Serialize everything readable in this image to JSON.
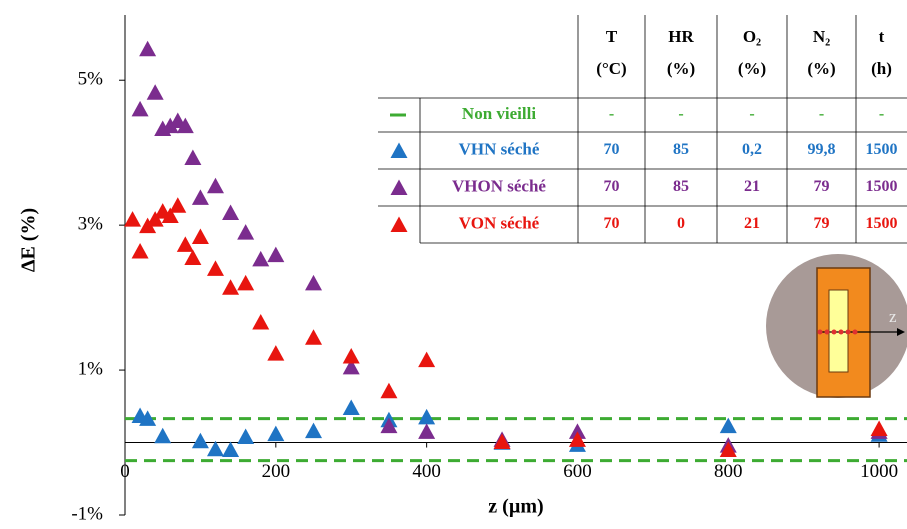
{
  "chart_data": {
    "type": "scatter",
    "xlabel": "z (µm)",
    "ylabel": "ΔE (%)",
    "xlim": [
      0,
      1037
    ],
    "ylim": [
      -1,
      5.9
    ],
    "xticks": [
      0,
      200,
      400,
      600,
      800,
      1000
    ],
    "yticks": [
      {
        "value": 5,
        "label": "5%"
      },
      {
        "value": 3,
        "label": "3%"
      },
      {
        "value": 1,
        "label": "1%"
      },
      {
        "value": -1,
        "label": "-1%"
      }
    ],
    "series": [
      {
        "name": "Non vieilli",
        "color": "#3dab32",
        "values": [
          0.33,
          -0.25
        ]
      },
      {
        "name": "VHN séché",
        "color": "#1f74c4",
        "x": [
          20,
          30,
          50,
          100,
          120,
          140,
          160,
          200,
          250,
          300,
          350,
          400,
          500,
          600,
          800,
          1000
        ],
        "values": [
          0.36,
          0.32,
          0.08,
          0.01,
          -0.1,
          -0.11,
          0.07,
          0.11,
          0.15,
          0.47,
          0.3,
          0.34,
          -0.01,
          -0.04,
          0.22,
          0.1
        ]
      },
      {
        "name": "VHON séché",
        "color": "#7b2c8e",
        "x": [
          20,
          30,
          40,
          50,
          60,
          70,
          80,
          90,
          100,
          120,
          140,
          160,
          180,
          200,
          250,
          300,
          350,
          400,
          500,
          600,
          800,
          1000
        ],
        "values": [
          4.59,
          5.42,
          4.82,
          4.32,
          4.36,
          4.43,
          4.36,
          3.92,
          3.37,
          3.53,
          3.16,
          2.89,
          2.52,
          2.58,
          2.19,
          1.03,
          0.22,
          0.14,
          0.03,
          0.14,
          -0.05,
          0.14
        ]
      },
      {
        "name": "VON séché",
        "color": "#e8150f",
        "x": [
          10,
          20,
          30,
          40,
          50,
          60,
          70,
          80,
          90,
          100,
          120,
          140,
          160,
          180,
          200,
          250,
          300,
          350,
          400,
          500,
          600,
          800,
          1000
        ],
        "values": [
          3.07,
          2.63,
          2.98,
          3.07,
          3.18,
          3.12,
          3.26,
          2.72,
          2.54,
          2.83,
          2.39,
          2.13,
          2.19,
          1.65,
          1.22,
          1.44,
          1.18,
          0.7,
          1.13,
          0.0,
          0.03,
          -0.11,
          0.18
        ]
      }
    ],
    "table": {
      "header": [
        "T (°C)",
        "HR (%)",
        "O₂ (%)",
        "N₂ (%)",
        "t (h)"
      ],
      "rows": [
        [
          "-",
          "-",
          "-",
          "-",
          "-"
        ],
        [
          "70",
          "85",
          "0,2",
          "99,8",
          "1500"
        ],
        [
          "70",
          "85",
          "21",
          "79",
          "1500"
        ],
        [
          "70",
          "0",
          "21",
          "79",
          "1500"
        ]
      ]
    },
    "inset_label": "z"
  }
}
